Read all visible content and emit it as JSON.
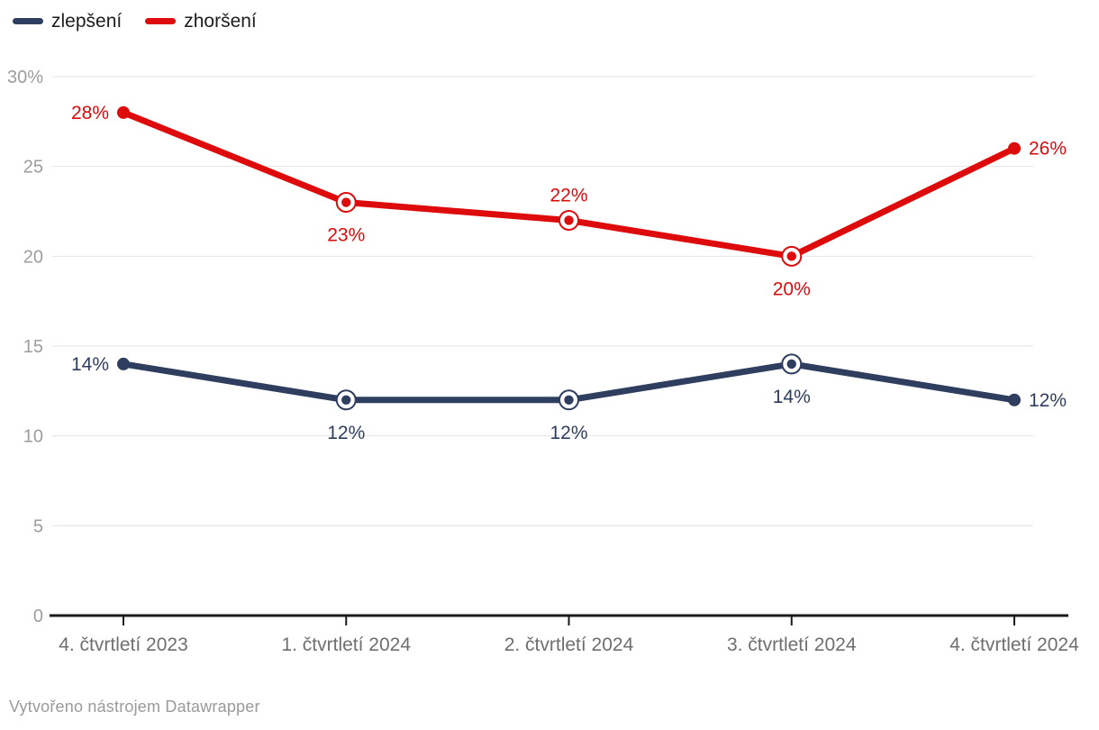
{
  "legend": {
    "items": [
      {
        "label": "zlepšení",
        "color": "#2f3e5e"
      },
      {
        "label": "zhoršení",
        "color": "#dd0b0b"
      }
    ]
  },
  "footer": {
    "text": "Vytvořeno nástrojem Datawrapper"
  },
  "chart_data": {
    "type": "line",
    "title": "",
    "xlabel": "",
    "ylabel": "",
    "categories": [
      "4. čtvrtletí 2023",
      "1. čtvrtletí 2024",
      "2. čtvrtletí 2024",
      "3. čtvrtletí 2024",
      "4. čtvrtletí 2024"
    ],
    "series": [
      {
        "name": "zlepšení",
        "color": "#2f3e5e",
        "values": [
          14,
          12,
          12,
          14,
          12
        ],
        "point_labels": [
          "14%",
          "12%",
          "12%",
          "14%",
          "12%"
        ],
        "label_positions": [
          "left",
          "below",
          "below",
          "below",
          "right"
        ],
        "marker_styles": [
          "dot",
          "ring",
          "ring",
          "ring",
          "dot"
        ]
      },
      {
        "name": "zhoršení",
        "color": "#dd0b0b",
        "values": [
          28,
          23,
          22,
          20,
          26
        ],
        "point_labels": [
          "28%",
          "23%",
          "22%",
          "20%",
          "26%"
        ],
        "label_positions": [
          "left",
          "below",
          "above",
          "below",
          "right"
        ],
        "marker_styles": [
          "dot",
          "ring",
          "ring",
          "ring",
          "dot"
        ]
      }
    ],
    "yticks": [
      {
        "value": 0,
        "label": "0"
      },
      {
        "value": 5,
        "label": "5"
      },
      {
        "value": 10,
        "label": "10"
      },
      {
        "value": 15,
        "label": "15"
      },
      {
        "value": 20,
        "label": "20"
      },
      {
        "value": 25,
        "label": "25"
      },
      {
        "value": 30,
        "label": "30%"
      }
    ],
    "ylim": [
      0,
      30
    ],
    "grid": true,
    "legend_position": "top-left",
    "colors": {
      "grid_line": "#e4e4e4",
      "axis_line": "#1a1a1a",
      "y_tick_label": "#9d9d9d",
      "x_tick_label": "#6f6f6f"
    }
  }
}
